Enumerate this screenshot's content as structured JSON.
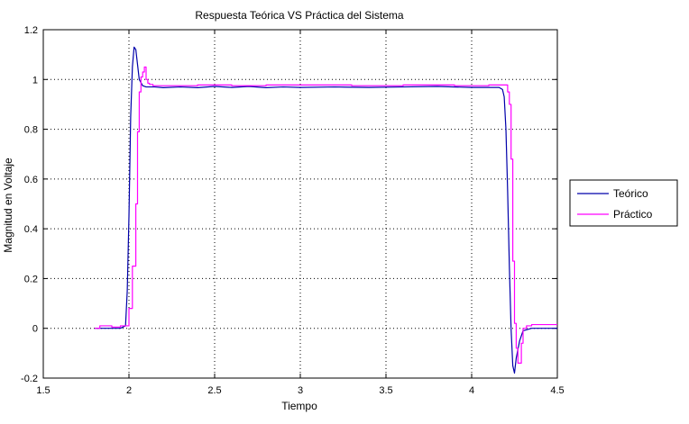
{
  "chart_data": {
    "type": "line",
    "title": "Respuesta Teórica VS Práctica del Sistema",
    "xlabel": "Tiempo",
    "ylabel": "Magnitud en Voltaje",
    "xlim": [
      1.5,
      4.5
    ],
    "ylim": [
      -0.2,
      1.2
    ],
    "xticks": [
      1.5,
      2,
      2.5,
      3,
      3.5,
      4,
      4.5
    ],
    "xtick_labels": [
      "1.5",
      "2",
      "2.5",
      "3",
      "3.5",
      "4",
      "4.5"
    ],
    "yticks": [
      -0.2,
      0,
      0.2,
      0.4,
      0.6,
      0.8,
      1,
      1.2
    ],
    "ytick_labels": [
      "-0.2",
      "0",
      "0.2",
      "0.4",
      "0.6",
      "0.8",
      "1",
      "1.2"
    ],
    "grid": true,
    "legend_position": "outside-right",
    "series": [
      {
        "name": "Teórico",
        "color": "#0000aa",
        "step": false,
        "x": [
          1.8,
          1.85,
          1.9,
          1.95,
          1.98,
          1.99,
          2.0,
          2.01,
          2.02,
          2.03,
          2.04,
          2.05,
          2.06,
          2.08,
          2.1,
          2.15,
          2.2,
          2.3,
          2.4,
          2.5,
          2.6,
          2.7,
          2.8,
          2.9,
          3.0,
          3.2,
          3.4,
          3.6,
          3.8,
          4.0,
          4.1,
          4.16,
          4.18,
          4.19,
          4.2,
          4.21,
          4.22,
          4.23,
          4.24,
          4.25,
          4.26,
          4.28,
          4.3,
          4.35,
          4.4,
          4.45,
          4.5
        ],
        "y": [
          0.0,
          0.0,
          0.0,
          0.0,
          0.01,
          0.15,
          0.45,
          0.85,
          1.05,
          1.13,
          1.12,
          1.06,
          1.0,
          0.975,
          0.97,
          0.97,
          0.967,
          0.97,
          0.967,
          0.972,
          0.968,
          0.972,
          0.967,
          0.97,
          0.968,
          0.97,
          0.968,
          0.97,
          0.972,
          0.968,
          0.968,
          0.968,
          0.96,
          0.93,
          0.8,
          0.55,
          0.25,
          0.0,
          -0.15,
          -0.18,
          -0.12,
          -0.05,
          -0.01,
          0.0,
          0.0,
          0.0,
          0.0
        ]
      },
      {
        "name": "Práctico",
        "color": "#ff00ff",
        "step": true,
        "x": [
          1.8,
          1.83,
          1.86,
          1.9,
          1.95,
          2.0,
          2.02,
          2.04,
          2.05,
          2.06,
          2.07,
          2.08,
          2.09,
          2.1,
          2.11,
          2.12,
          2.14,
          2.2,
          2.4,
          2.6,
          2.8,
          3.0,
          3.3,
          3.6,
          3.9,
          4.1,
          4.2,
          4.21,
          4.22,
          4.23,
          4.24,
          4.25,
          4.26,
          4.27,
          4.28,
          4.29,
          4.3,
          4.32,
          4.35,
          4.4,
          4.45,
          4.5
        ],
        "y": [
          0.0,
          0.01,
          0.01,
          0.005,
          0.01,
          0.08,
          0.25,
          0.5,
          0.79,
          0.95,
          1.01,
          1.03,
          1.05,
          1.0,
          0.985,
          0.98,
          0.975,
          0.975,
          0.978,
          0.975,
          0.978,
          0.978,
          0.975,
          0.978,
          0.975,
          0.978,
          0.978,
          0.95,
          0.9,
          0.68,
          0.27,
          0.02,
          -0.08,
          -0.14,
          -0.14,
          -0.06,
          0.0,
          0.01,
          0.015,
          0.015,
          0.015,
          0.015
        ]
      }
    ]
  }
}
